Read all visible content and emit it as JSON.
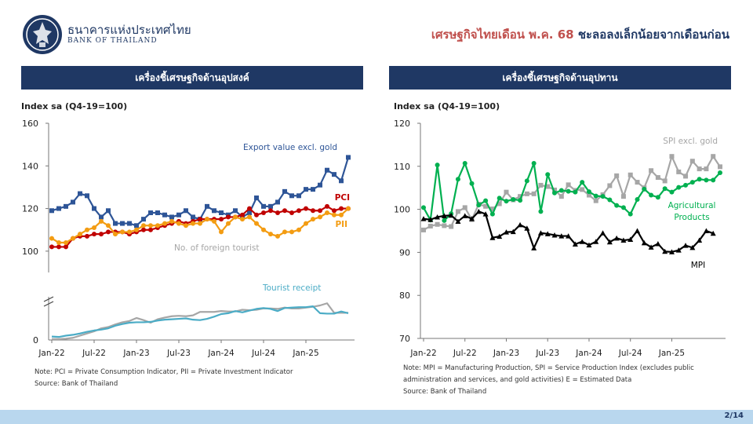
{
  "header": {
    "bank_name_th": "ธนาคารแห่งประเทศไทย",
    "bank_name_en": "BANK OF THAILAND",
    "headline_part1": "เศรษฐกิจไทยเดือน พ.ค. 68 ",
    "headline_part2": "ชะลอลงเล็กน้อยจากเดือนก่อน"
  },
  "colors": {
    "navy": "#1f3864",
    "pci": "#c00000",
    "pii": "#f39c12",
    "export": "#2e5597",
    "tourist_n": "#a6a6a6",
    "tourist_r": "#4bacc6",
    "spi": "#a6a6a6",
    "agri": "#00b050",
    "mpi": "#000000"
  },
  "footer": {
    "page": "2/14"
  },
  "chart_data": [
    {
      "type": "line",
      "panel_title": "เครื่องชี้เศรษฐกิจด้านอุปสงค์",
      "ylabel": "Index sa (Q4-19=100)",
      "yticks": [
        "160",
        "140",
        "120",
        "100",
        "0"
      ],
      "x_tick_labels": [
        "Jan-22",
        "Jul-22",
        "Jan-23",
        "Jul-23",
        "Jan-24",
        "Jul-24",
        "Jan-25"
      ],
      "upper_ylim": [
        90,
        160
      ],
      "lower_ylim": [
        0,
        100
      ],
      "axis_break": true,
      "note": "Note: PCI = Private Consumption Indicator, PII = Private Investment Indicator",
      "source": "Source: Bank of Thailand",
      "series": [
        {
          "name": "Export value excl. gold",
          "label": "Export value excl. gold",
          "color_key": "export",
          "marker": "square",
          "axis": "upper",
          "values": [
            119,
            120,
            121,
            123,
            127,
            126,
            120,
            116,
            119,
            113,
            113,
            113,
            112,
            115,
            118,
            118,
            117,
            116,
            117,
            119,
            116,
            115,
            121,
            119,
            118,
            117,
            119,
            116,
            118,
            125,
            121,
            121,
            123,
            128,
            126,
            126,
            129,
            129,
            131,
            138,
            136,
            133,
            144
          ]
        },
        {
          "name": "PCI",
          "label": "PCI",
          "color_key": "pci",
          "marker": "circle",
          "axis": "upper",
          "values": [
            102,
            102,
            102,
            106,
            107,
            107,
            108,
            108,
            109,
            109,
            109,
            108,
            109,
            110,
            110,
            111,
            112,
            113,
            114,
            113,
            114,
            115,
            115,
            115,
            115,
            116,
            116,
            117,
            120,
            117,
            118,
            119,
            118,
            119,
            118,
            119,
            120,
            119,
            119,
            121,
            119,
            120,
            120
          ]
        },
        {
          "name": "PII",
          "label": "PII",
          "color_key": "pii",
          "marker": "circle",
          "axis": "upper",
          "values": [
            106,
            104,
            104,
            106,
            108,
            110,
            111,
            114,
            112,
            108,
            109,
            109,
            110,
            112,
            112,
            112,
            113,
            114,
            113,
            112,
            113,
            113,
            115,
            114,
            109,
            113,
            116,
            115,
            116,
            113,
            110,
            108,
            107,
            109,
            109,
            110,
            113,
            115,
            116,
            118,
            117,
            117,
            120
          ]
        },
        {
          "name": "No. of foreign tourist",
          "label": "No. of foreign tourist",
          "color_key": "tourist_n",
          "marker": "none",
          "axis": "lower",
          "values": [
            2,
            2,
            3,
            5,
            10,
            15,
            20,
            27,
            30,
            36,
            41,
            44,
            51,
            46,
            40,
            48,
            52,
            55,
            56,
            55,
            57,
            65,
            65,
            65,
            67,
            66,
            66,
            70,
            69,
            70,
            73,
            73,
            72,
            75,
            73,
            73,
            75,
            77,
            80,
            85,
            63,
            63,
            63
          ]
        },
        {
          "name": "Tourist receipt",
          "label": "Tourist receipt",
          "color_key": "tourist_r",
          "marker": "none",
          "axis": "lower",
          "values": [
            8,
            7,
            10,
            12,
            15,
            19,
            22,
            24,
            27,
            33,
            37,
            40,
            41,
            41,
            42,
            45,
            47,
            48,
            49,
            50,
            47,
            46,
            49,
            54,
            60,
            62,
            67,
            64,
            68,
            72,
            74,
            72,
            67,
            74,
            75,
            76,
            76,
            78,
            62,
            61,
            61,
            66,
            62
          ]
        }
      ]
    },
    {
      "type": "line",
      "panel_title": "เครื่องชี้เศรษฐกิจด้านอุปทาน",
      "ylabel": "Index sa (Q4-19=100)",
      "yticks": [
        "120",
        "110",
        "100",
        "90",
        "80",
        "70"
      ],
      "x_tick_labels": [
        "Jan-22",
        "Jul-22",
        "Jan-23",
        "Jul-23",
        "Jan-24",
        "Jul-24",
        "Jan-25"
      ],
      "ylim": [
        70,
        120
      ],
      "note": "Note: MPI = Manufacturing Production, SPI = Service Production Index (excludes public administration and services, and gold activities)  E = Estimated Data",
      "source": "Source: Bank of Thailand",
      "series": [
        {
          "name": "SPI excl. gold",
          "label": "SPI excl. gold",
          "color_key": "spi",
          "marker": "square",
          "axis": "main",
          "values": [
            95.2,
            96.1,
            96.5,
            96.2,
            96,
            99.5,
            100.4,
            97.6,
            101.2,
            100.7,
            100.1,
            101.3,
            104,
            102.2,
            103,
            103.6,
            103.6,
            105.6,
            105.3,
            104.5,
            103,
            105.7,
            104.4,
            104.6,
            103.3,
            102,
            103.4,
            105.5,
            107.8,
            103,
            108,
            106.3,
            105,
            109,
            107.4,
            106.6,
            112.3,
            108.7,
            107.7,
            111.2,
            109.4,
            109.4,
            112.3,
            109.9
          ]
        },
        {
          "name": "Agricultural Products",
          "label": "Agricultural Products",
          "color_key": "agri",
          "marker": "circle",
          "axis": "main",
          "values": [
            100.4,
            97.5,
            110.3,
            97.4,
            99,
            107,
            110.7,
            106,
            101,
            102,
            98.9,
            102.6,
            101.9,
            102.3,
            102.1,
            106.6,
            110.7,
            99.5,
            108.1,
            103.8,
            104.4,
            104.2,
            104,
            106.3,
            104.1,
            103.1,
            103,
            102.2,
            100.9,
            100.4,
            98.9,
            102.3,
            104.7,
            103.3,
            102.8,
            104.8,
            104,
            105.1,
            105.6,
            106.3,
            107,
            106.8,
            106.8,
            108.5
          ]
        },
        {
          "name": "MPI",
          "label": "MPI",
          "color_key": "mpi",
          "marker": "triangle",
          "axis": "main",
          "values": [
            97.8,
            97.6,
            98.2,
            98.5,
            98.6,
            97.2,
            98.5,
            97.8,
            99.5,
            98.9,
            93.4,
            93.7,
            94.7,
            94.8,
            96.4,
            95.6,
            91,
            94.5,
            94.3,
            94,
            93.8,
            93.8,
            91.9,
            92.5,
            91.7,
            92.5,
            94.5,
            92.4,
            93.3,
            92.8,
            93,
            95,
            92.2,
            91.2,
            92,
            90.2,
            90.1,
            90.5,
            91.6,
            91.1,
            92.8,
            95,
            94.4
          ]
        }
      ]
    }
  ]
}
